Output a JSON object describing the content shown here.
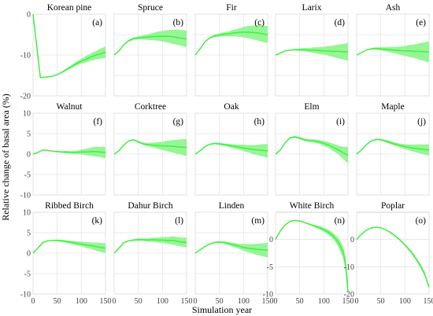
{
  "figure": {
    "xlabel": "Simulation year",
    "ylabel": "Relative change of basal area (%)"
  },
  "colors": {
    "line": "#44ee44",
    "band": "#90f590",
    "grid": "#e4e4e4",
    "frame": "#c8c8c8"
  },
  "chart_data": [
    {
      "type": "line",
      "title": "Korean pine",
      "letter": "(a)",
      "xlim": [
        0,
        150
      ],
      "ylim": [
        -20,
        0
      ],
      "yticks": [
        0,
        -10,
        -20
      ],
      "xticks": [
        0,
        50,
        100,
        150
      ],
      "grid": true,
      "x": [
        0,
        15,
        25,
        40,
        50,
        60,
        70,
        80,
        90,
        100,
        110,
        120,
        130,
        140,
        150
      ],
      "mean": [
        0,
        -15.5,
        -15.4,
        -15.2,
        -14.8,
        -14.2,
        -13.5,
        -12.8,
        -12.1,
        -11.5,
        -11,
        -10.5,
        -10,
        -9.7,
        -9.3
      ],
      "lower": [
        0,
        -15.5,
        -15.4,
        -15.2,
        -14.9,
        -14.4,
        -13.8,
        -13.2,
        -12.6,
        -12.1,
        -11.8,
        -11.4,
        -11.1,
        -10.9,
        -10.7
      ],
      "upper": [
        0,
        -15.5,
        -15.4,
        -15.2,
        -14.7,
        -14.0,
        -13.2,
        -12.4,
        -11.6,
        -10.9,
        -10.2,
        -9.6,
        -9.0,
        -8.4,
        -7.9
      ]
    },
    {
      "type": "line",
      "title": "Spruce",
      "letter": "(b)",
      "xlim": [
        0,
        150
      ],
      "ylim": [
        -10,
        10
      ],
      "yticks": [
        10,
        5,
        0,
        -5,
        -10
      ],
      "xticks": [
        0,
        50,
        100,
        150
      ],
      "grid": true,
      "x": [
        0,
        10,
        20,
        30,
        40,
        50,
        60,
        70,
        80,
        90,
        100,
        110,
        120,
        130,
        140,
        150
      ],
      "mean": [
        0,
        1,
        2.5,
        3.5,
        4,
        4.2,
        4.3,
        4.4,
        4.5,
        4.6,
        4.6,
        4.6,
        4.5,
        4.3,
        4.1,
        3.9
      ],
      "lower": [
        0,
        1,
        2.4,
        3.3,
        3.7,
        3.8,
        3.8,
        3.7,
        3.6,
        3.5,
        3.3,
        3.1,
        2.8,
        2.5,
        2.2,
        1.9
      ],
      "upper": [
        0,
        1,
        2.6,
        3.7,
        4.3,
        4.6,
        4.8,
        5.1,
        5.4,
        5.7,
        5.9,
        6.1,
        6.2,
        6.2,
        6.1,
        6.0
      ]
    },
    {
      "type": "line",
      "title": "Fir",
      "letter": "(c)",
      "xlim": [
        0,
        150
      ],
      "ylim": [
        -10,
        10
      ],
      "yticks": [
        10,
        5,
        0,
        -5,
        -10
      ],
      "xticks": [
        0,
        50,
        100,
        150
      ],
      "grid": true,
      "x": [
        0,
        10,
        20,
        30,
        40,
        50,
        60,
        70,
        80,
        90,
        100,
        110,
        120,
        130,
        140,
        150
      ],
      "mean": [
        0,
        1.5,
        3.2,
        4.2,
        4.7,
        4.9,
        5.1,
        5.2,
        5.4,
        5.5,
        5.6,
        5.6,
        5.5,
        5.4,
        5.2,
        5.0
      ],
      "lower": [
        0,
        1.5,
        3.1,
        4.0,
        4.4,
        4.5,
        4.6,
        4.6,
        4.6,
        4.5,
        4.3,
        4.1,
        3.8,
        3.5,
        3.2,
        2.9
      ],
      "upper": [
        0,
        1.5,
        3.3,
        4.4,
        5.0,
        5.3,
        5.6,
        5.8,
        6.2,
        6.5,
        6.9,
        7.1,
        7.2,
        7.3,
        7.2,
        7.1
      ]
    },
    {
      "type": "line",
      "title": "Larix",
      "letter": "(d)",
      "xlim": [
        0,
        150
      ],
      "ylim": [
        -10,
        10
      ],
      "yticks": [
        10,
        5,
        0,
        -5,
        -10
      ],
      "xticks": [
        0,
        50,
        100,
        150
      ],
      "grid": true,
      "x": [
        0,
        10,
        20,
        30,
        40,
        50,
        60,
        70,
        80,
        90,
        100,
        110,
        120,
        130,
        140,
        150
      ],
      "mean": [
        0,
        0.5,
        1,
        1.2,
        1.3,
        1.3,
        1.3,
        1.2,
        1.2,
        1.1,
        1.0,
        1.0,
        0.9,
        0.9,
        0.8,
        0.8
      ],
      "lower": [
        0,
        0.5,
        1,
        1.1,
        1.1,
        1.0,
        0.9,
        0.7,
        0.5,
        0.3,
        0.1,
        -0.2,
        -0.5,
        -0.8,
        -1.1,
        -1.4
      ],
      "upper": [
        0,
        0.5,
        1,
        1.3,
        1.5,
        1.6,
        1.7,
        1.7,
        1.9,
        1.9,
        2.0,
        2.2,
        2.3,
        2.6,
        2.7,
        3.0
      ]
    },
    {
      "type": "line",
      "title": "Ash",
      "letter": "(e)",
      "xlim": [
        0,
        150
      ],
      "ylim": [
        -10,
        10
      ],
      "yticks": [
        10,
        5,
        0,
        -5,
        -10
      ],
      "xticks": [
        0,
        50,
        100,
        150
      ],
      "grid": true,
      "x": [
        0,
        10,
        20,
        30,
        40,
        50,
        60,
        70,
        80,
        90,
        100,
        110,
        120,
        130,
        140,
        150
      ],
      "mean": [
        0,
        0.6,
        1.2,
        1.5,
        1.6,
        1.5,
        1.4,
        1.3,
        1.2,
        1.1,
        1.0,
        1.0,
        0.9,
        0.9,
        0.8,
        0.8
      ],
      "lower": [
        0,
        0.6,
        1.1,
        1.3,
        1.3,
        1.1,
        0.9,
        0.6,
        0.4,
        0.1,
        -0.2,
        -0.5,
        -0.8,
        -1.1,
        -1.5,
        -1.8
      ],
      "upper": [
        0,
        0.6,
        1.3,
        1.7,
        1.9,
        1.9,
        1.9,
        2.0,
        2.0,
        2.1,
        2.2,
        2.5,
        2.6,
        2.9,
        3.1,
        3.4
      ]
    },
    {
      "type": "line",
      "title": "Walnut",
      "letter": "(f)",
      "xlim": [
        0,
        150
      ],
      "ylim": [
        -10,
        10
      ],
      "yticks": [
        10,
        5,
        0,
        -5,
        -10
      ],
      "xticks": [
        0,
        50,
        100,
        150
      ],
      "grid": true,
      "x": [
        0,
        10,
        20,
        30,
        40,
        50,
        60,
        70,
        80,
        90,
        100,
        110,
        120,
        130,
        140,
        150
      ],
      "mean": [
        0,
        0.4,
        1.0,
        0.9,
        0.7,
        0.6,
        0.5,
        0.5,
        0.4,
        0.4,
        0.5,
        0.5,
        0.6,
        0.6,
        0.5,
        0.4
      ],
      "lower": [
        0,
        0.4,
        0.9,
        0.8,
        0.6,
        0.4,
        0.3,
        0.2,
        0.1,
        0,
        -0.1,
        -0.3,
        -0.4,
        -0.6,
        -0.8,
        -1.0
      ],
      "upper": [
        0,
        0.4,
        1.1,
        1.0,
        0.8,
        0.8,
        0.7,
        0.8,
        0.7,
        0.8,
        1.1,
        1.3,
        1.6,
        1.8,
        1.8,
        1.8
      ]
    },
    {
      "type": "line",
      "title": "Corktree",
      "letter": "(g)",
      "xlim": [
        0,
        150
      ],
      "ylim": [
        -10,
        10
      ],
      "yticks": [
        10,
        5,
        0,
        -5,
        -10
      ],
      "xticks": [
        0,
        50,
        100,
        150
      ],
      "grid": true,
      "x": [
        0,
        10,
        20,
        30,
        40,
        50,
        60,
        70,
        80,
        90,
        100,
        110,
        120,
        130,
        140,
        150
      ],
      "mean": [
        0,
        0.8,
        2.2,
        3.2,
        3.5,
        3.0,
        2.5,
        2.3,
        2.2,
        2.1,
        2.0,
        2.0,
        1.9,
        1.8,
        1.7,
        1.6
      ],
      "lower": [
        0,
        0.8,
        2.1,
        3.1,
        3.3,
        2.8,
        2.2,
        1.9,
        1.6,
        1.3,
        1.0,
        0.7,
        0.4,
        0.1,
        -0.2,
        -0.5
      ],
      "upper": [
        0,
        0.8,
        2.3,
        3.3,
        3.7,
        3.2,
        2.8,
        2.7,
        2.8,
        2.9,
        3.0,
        3.3,
        3.4,
        3.5,
        3.6,
        3.7
      ]
    },
    {
      "type": "line",
      "title": "Oak",
      "letter": "(h)",
      "xlim": [
        0,
        150
      ],
      "ylim": [
        -10,
        10
      ],
      "yticks": [
        10,
        5,
        0,
        -5,
        -10
      ],
      "xticks": [
        0,
        50,
        100,
        150
      ],
      "grid": true,
      "x": [
        0,
        10,
        20,
        30,
        40,
        50,
        60,
        70,
        80,
        90,
        100,
        110,
        120,
        130,
        140,
        150
      ],
      "mean": [
        0,
        0.8,
        1.8,
        2.4,
        2.6,
        2.5,
        2.3,
        2.1,
        1.9,
        1.7,
        1.5,
        1.3,
        1.1,
        1.0,
        0.9,
        0.8
      ],
      "lower": [
        0,
        0.8,
        1.7,
        2.3,
        2.4,
        2.2,
        2.0,
        1.7,
        1.4,
        1.1,
        0.7,
        0.4,
        0,
        -0.3,
        -0.6,
        -0.9
      ],
      "upper": [
        0,
        0.8,
        1.9,
        2.5,
        2.8,
        2.8,
        2.6,
        2.5,
        2.4,
        2.3,
        2.3,
        2.2,
        2.2,
        2.3,
        2.4,
        2.5
      ]
    },
    {
      "type": "line",
      "title": "Elm",
      "letter": "(i)",
      "xlim": [
        0,
        150
      ],
      "ylim": [
        -10,
        10
      ],
      "yticks": [
        10,
        5,
        0,
        -5,
        -10
      ],
      "xticks": [
        0,
        50,
        100,
        150
      ],
      "grid": true,
      "x": [
        0,
        10,
        20,
        30,
        40,
        50,
        60,
        70,
        80,
        90,
        100,
        110,
        120,
        130,
        140,
        150
      ],
      "mean": [
        0,
        1.0,
        2.8,
        4.0,
        4.2,
        3.9,
        3.5,
        3.3,
        3.2,
        3.0,
        2.6,
        2.2,
        1.6,
        1.0,
        0.3,
        -0.3
      ],
      "lower": [
        0,
        1.0,
        2.7,
        3.8,
        4.0,
        3.6,
        3.2,
        3.0,
        2.8,
        2.5,
        2.0,
        1.5,
        0.7,
        -0.1,
        -1.2,
        -2.3
      ],
      "upper": [
        0,
        1.0,
        2.9,
        4.2,
        4.4,
        4.2,
        3.8,
        3.6,
        3.6,
        3.5,
        3.2,
        2.9,
        2.5,
        2.1,
        1.8,
        1.7
      ]
    },
    {
      "type": "line",
      "title": "Maple",
      "letter": "(j)",
      "xlim": [
        0,
        150
      ],
      "ylim": [
        -10,
        10
      ],
      "yticks": [
        10,
        5,
        0,
        -5,
        -10
      ],
      "xticks": [
        0,
        50,
        100,
        150
      ],
      "grid": true,
      "x": [
        0,
        10,
        20,
        30,
        40,
        50,
        60,
        70,
        80,
        90,
        100,
        110,
        120,
        130,
        140,
        150
      ],
      "mean": [
        0,
        1.0,
        2.3,
        3.2,
        3.6,
        3.5,
        3.2,
        2.8,
        2.4,
        2.1,
        1.8,
        1.6,
        1.4,
        1.3,
        1.1,
        1.0
      ],
      "lower": [
        0,
        1.0,
        2.2,
        3.1,
        3.4,
        3.3,
        2.9,
        2.4,
        2.0,
        1.6,
        1.2,
        0.9,
        0.5,
        0.2,
        -0.1,
        -0.4
      ],
      "upper": [
        0,
        1.0,
        2.4,
        3.3,
        3.8,
        3.7,
        3.5,
        3.2,
        2.8,
        2.6,
        2.4,
        2.3,
        2.3,
        2.4,
        2.3,
        2.4
      ]
    },
    {
      "type": "line",
      "title": "Ribbed Birch",
      "letter": "(k)",
      "xlim": [
        0,
        150
      ],
      "ylim": [
        -10,
        10
      ],
      "yticks": [
        10,
        5,
        0,
        -5,
        -10
      ],
      "xticks": [
        0,
        50,
        100,
        150
      ],
      "grid": true,
      "x": [
        0,
        10,
        20,
        30,
        40,
        50,
        60,
        70,
        80,
        90,
        100,
        110,
        120,
        130,
        140,
        150
      ],
      "mean": [
        0,
        1.2,
        2.6,
        3.0,
        3.1,
        3.1,
        3.0,
        2.8,
        2.6,
        2.4,
        2.2,
        2.0,
        1.8,
        1.6,
        1.4,
        1.2
      ],
      "lower": [
        0,
        1.2,
        2.5,
        2.9,
        3.0,
        2.9,
        2.7,
        2.5,
        2.2,
        1.9,
        1.6,
        1.3,
        1.0,
        0.6,
        0.3,
        0
      ],
      "upper": [
        0,
        1.2,
        2.7,
        3.1,
        3.2,
        3.3,
        3.3,
        3.1,
        3.0,
        2.9,
        2.8,
        2.7,
        2.6,
        2.6,
        2.5,
        2.4
      ]
    },
    {
      "type": "line",
      "title": "Dahur Birch",
      "letter": "(l)",
      "xlim": [
        0,
        150
      ],
      "ylim": [
        -10,
        10
      ],
      "yticks": [
        10,
        5,
        0,
        -5,
        -10
      ],
      "xticks": [
        0,
        50,
        100,
        150
      ],
      "grid": true,
      "x": [
        0,
        10,
        20,
        30,
        40,
        50,
        60,
        70,
        80,
        90,
        100,
        110,
        120,
        130,
        140,
        150
      ],
      "mean": [
        0,
        1.2,
        2.6,
        3.0,
        3.2,
        3.3,
        3.3,
        3.2,
        3.3,
        3.2,
        3.2,
        3.1,
        3.1,
        2.9,
        2.7,
        2.6
      ],
      "lower": [
        0,
        1.2,
        2.5,
        2.9,
        3.0,
        3.0,
        3.0,
        2.8,
        2.8,
        2.6,
        2.5,
        2.3,
        2.1,
        1.8,
        1.6,
        1.4
      ],
      "upper": [
        0,
        1.2,
        2.7,
        3.1,
        3.4,
        3.6,
        3.6,
        3.6,
        3.8,
        3.8,
        3.9,
        3.9,
        4.1,
        4.0,
        3.8,
        3.8
      ]
    },
    {
      "type": "line",
      "title": "Linden",
      "letter": "(m)",
      "xlim": [
        0,
        150
      ],
      "ylim": [
        -10,
        10
      ],
      "yticks": [
        10,
        5,
        0,
        -5,
        -10
      ],
      "xticks": [
        0,
        50,
        100,
        150
      ],
      "grid": true,
      "x": [
        0,
        10,
        20,
        30,
        40,
        50,
        60,
        70,
        80,
        90,
        100,
        110,
        120,
        130,
        140,
        150
      ],
      "mean": [
        0,
        0.8,
        1.6,
        2.2,
        2.6,
        2.7,
        2.6,
        2.3,
        2.0,
        1.7,
        1.4,
        1.2,
        1.0,
        0.9,
        0.8,
        0.7
      ],
      "lower": [
        0,
        0.8,
        1.5,
        2.1,
        2.4,
        2.5,
        2.3,
        1.9,
        1.5,
        1.1,
        0.6,
        0.2,
        -0.2,
        -0.5,
        -0.8,
        -1.1
      ],
      "upper": [
        0,
        0.8,
        1.7,
        2.3,
        2.8,
        2.9,
        2.9,
        2.7,
        2.5,
        2.3,
        2.2,
        2.2,
        2.2,
        2.3,
        2.4,
        2.5
      ]
    },
    {
      "type": "line",
      "title": "White Birch",
      "letter": "(n)",
      "xlim": [
        0,
        150
      ],
      "ylim": [
        -10,
        5
      ],
      "yticks": [
        0,
        -5,
        -10
      ],
      "xticks": [
        0,
        50,
        100,
        150
      ],
      "grid": true,
      "x": [
        0,
        10,
        20,
        30,
        40,
        50,
        60,
        70,
        80,
        90,
        100,
        110,
        120,
        130,
        140,
        145,
        150
      ],
      "mean": [
        0,
        1.6,
        2.7,
        3.3,
        3.5,
        3.4,
        3.1,
        2.8,
        2.5,
        2.2,
        1.8,
        1.3,
        0.6,
        -0.5,
        -2.3,
        -4.5,
        -9.5
      ],
      "lower": [
        0,
        1.6,
        2.6,
        3.2,
        3.4,
        3.3,
        3.0,
        2.7,
        2.3,
        1.9,
        1.4,
        0.8,
        0.0,
        -1.3,
        -3.4,
        -5.8,
        -11.0
      ],
      "upper": [
        0,
        1.6,
        2.8,
        3.4,
        3.6,
        3.5,
        3.2,
        2.9,
        2.7,
        2.5,
        2.2,
        1.8,
        1.2,
        0.3,
        -1.2,
        -3.2,
        -8.0
      ]
    },
    {
      "type": "line",
      "title": "Poplar",
      "letter": "(o)",
      "xlim": [
        0,
        150
      ],
      "ylim": [
        -20,
        10
      ],
      "yticks": [
        0,
        -10,
        -20
      ],
      "xticks": [
        0,
        50,
        100,
        150
      ],
      "grid": true,
      "x": [
        0,
        10,
        20,
        30,
        40,
        50,
        60,
        70,
        80,
        90,
        100,
        110,
        120,
        130,
        140,
        150
      ],
      "mean": [
        0,
        2.0,
        3.4,
        4.2,
        4.5,
        4.3,
        3.6,
        2.6,
        1.3,
        -0.2,
        -2.0,
        -4.0,
        -6.3,
        -9.0,
        -12.3,
        -17.5
      ],
      "lower": [
        0,
        2.0,
        3.3,
        4.1,
        4.4,
        4.1,
        3.4,
        2.3,
        1.0,
        -0.6,
        -2.4,
        -4.5,
        -6.9,
        -9.7,
        -13.1,
        -18.0
      ],
      "upper": [
        0,
        2.0,
        3.5,
        4.3,
        4.6,
        4.5,
        3.8,
        2.9,
        1.6,
        0.2,
        -1.6,
        -3.5,
        -5.7,
        -8.3,
        -11.5,
        -17.0
      ]
    }
  ]
}
